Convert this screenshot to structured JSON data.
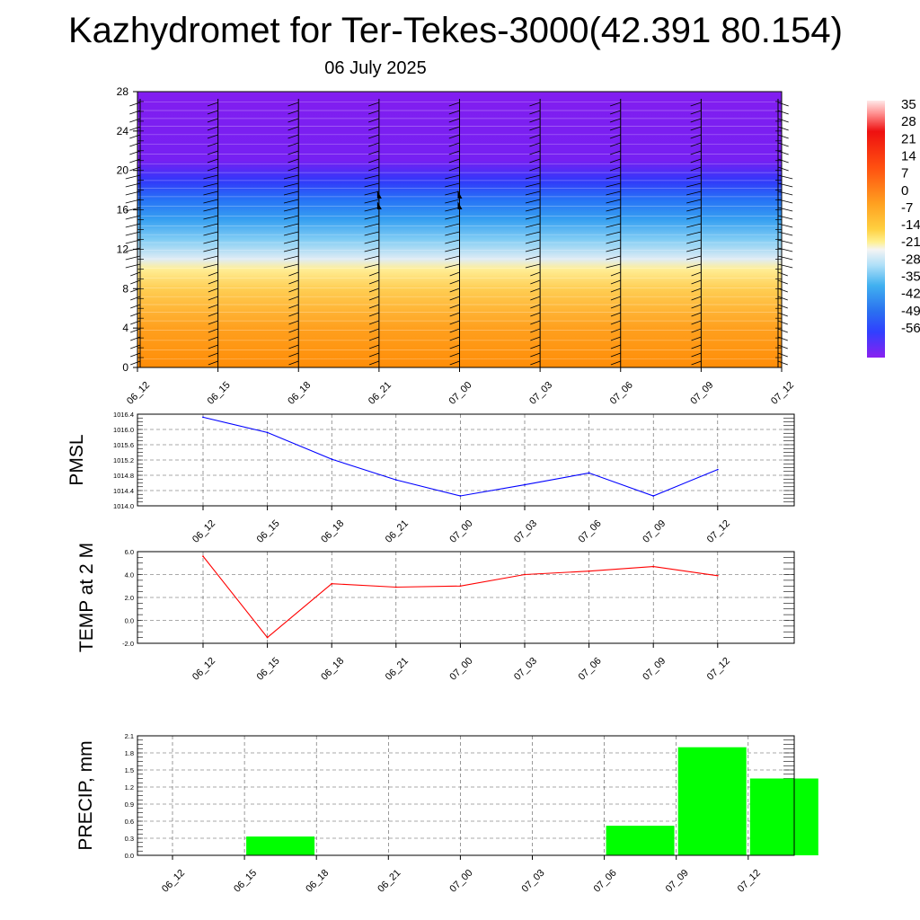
{
  "header": {
    "title": "Kazhydromet for Ter-Tekes-3000(42.391 80.154)",
    "subtitle": "06 July 2025"
  },
  "chart_data": [
    {
      "type": "heatmap",
      "name": "vertical cross-section temperature with wind barbs",
      "y_ticks": [
        "0",
        "4",
        "8",
        "12",
        "16",
        "20",
        "24",
        "28"
      ],
      "ylim": [
        0,
        28
      ],
      "x_ticks": [
        "06_12",
        "06_15",
        "06_18",
        "06_21",
        "07_00",
        "07_03",
        "07_06",
        "07_09",
        "07_12"
      ],
      "colorbar_labels": [
        "35",
        "28",
        "21",
        "14",
        "7",
        "0",
        "-7",
        "-14",
        "-21",
        "-28",
        "-35",
        "-42",
        "-49",
        "-56"
      ],
      "level_temperature": [
        {
          "level": 0,
          "value": 5
        },
        {
          "level": 4,
          "value": 2
        },
        {
          "level": 8,
          "value": -4
        },
        {
          "level": 10,
          "value": -9
        },
        {
          "level": 11,
          "value": -16
        },
        {
          "level": 13,
          "value": -24
        },
        {
          "level": 15,
          "value": -32
        },
        {
          "level": 17,
          "value": -40
        },
        {
          "level": 19,
          "value": -49
        },
        {
          "level": 21,
          "value": -56
        },
        {
          "level": 28,
          "value": -57
        }
      ],
      "colors": {
        "warm_low": "#ff8c00",
        "yellow": "#ffe060",
        "white": "#f4f4f4",
        "light_blue": "#aee0f8",
        "blue": "#3aa0f0",
        "deep_blue": "#2040ff",
        "violet": "#8a20f0"
      }
    },
    {
      "type": "line",
      "ylabel": "PMSL",
      "categories": [
        "06_12",
        "06_15",
        "06_18",
        "06_21",
        "07_00",
        "07_03",
        "07_06",
        "07_09",
        "07_12"
      ],
      "y_ticks": [
        "1014.0",
        "1014.4",
        "1014.8",
        "1015.2",
        "1015.6",
        "1016.0",
        "1016.4"
      ],
      "ylim": [
        1014.0,
        1016.4
      ],
      "series": [
        {
          "values": [
            1016.32,
            1015.92,
            1015.22,
            1014.68,
            1014.26,
            1014.55,
            1014.86,
            1014.26,
            1014.95
          ],
          "color": "#0000ff"
        }
      ],
      "grid": true
    },
    {
      "type": "line",
      "ylabel": "TEMP at 2 M",
      "categories": [
        "06_12",
        "06_15",
        "06_18",
        "06_21",
        "07_00",
        "07_03",
        "07_06",
        "07_09",
        "07_12"
      ],
      "y_ticks": [
        "-2.0",
        "0.0",
        "2.0",
        "4.0",
        "6.0"
      ],
      "ylim": [
        -2.0,
        6.0
      ],
      "series": [
        {
          "values": [
            5.6,
            -1.5,
            3.2,
            2.9,
            3.0,
            4.0,
            4.3,
            4.7,
            3.9
          ],
          "color": "#ff0000"
        }
      ],
      "grid": true
    },
    {
      "type": "bar",
      "ylabel": "PRECIP, mm",
      "categories": [
        "06_12",
        "06_15",
        "06_18",
        "06_21",
        "07_00",
        "07_03",
        "07_06",
        "07_09",
        "07_12"
      ],
      "y_ticks": [
        "0.0",
        "0.3",
        "0.6",
        "0.9",
        "1.2",
        "1.5",
        "1.8",
        "2.1"
      ],
      "ylim": [
        0.0,
        2.1
      ],
      "values": [
        0.0,
        0.33,
        0.0,
        0.0,
        0.0,
        0.0,
        0.52,
        1.9,
        1.35
      ],
      "color": "#00ff00",
      "grid": true
    }
  ]
}
